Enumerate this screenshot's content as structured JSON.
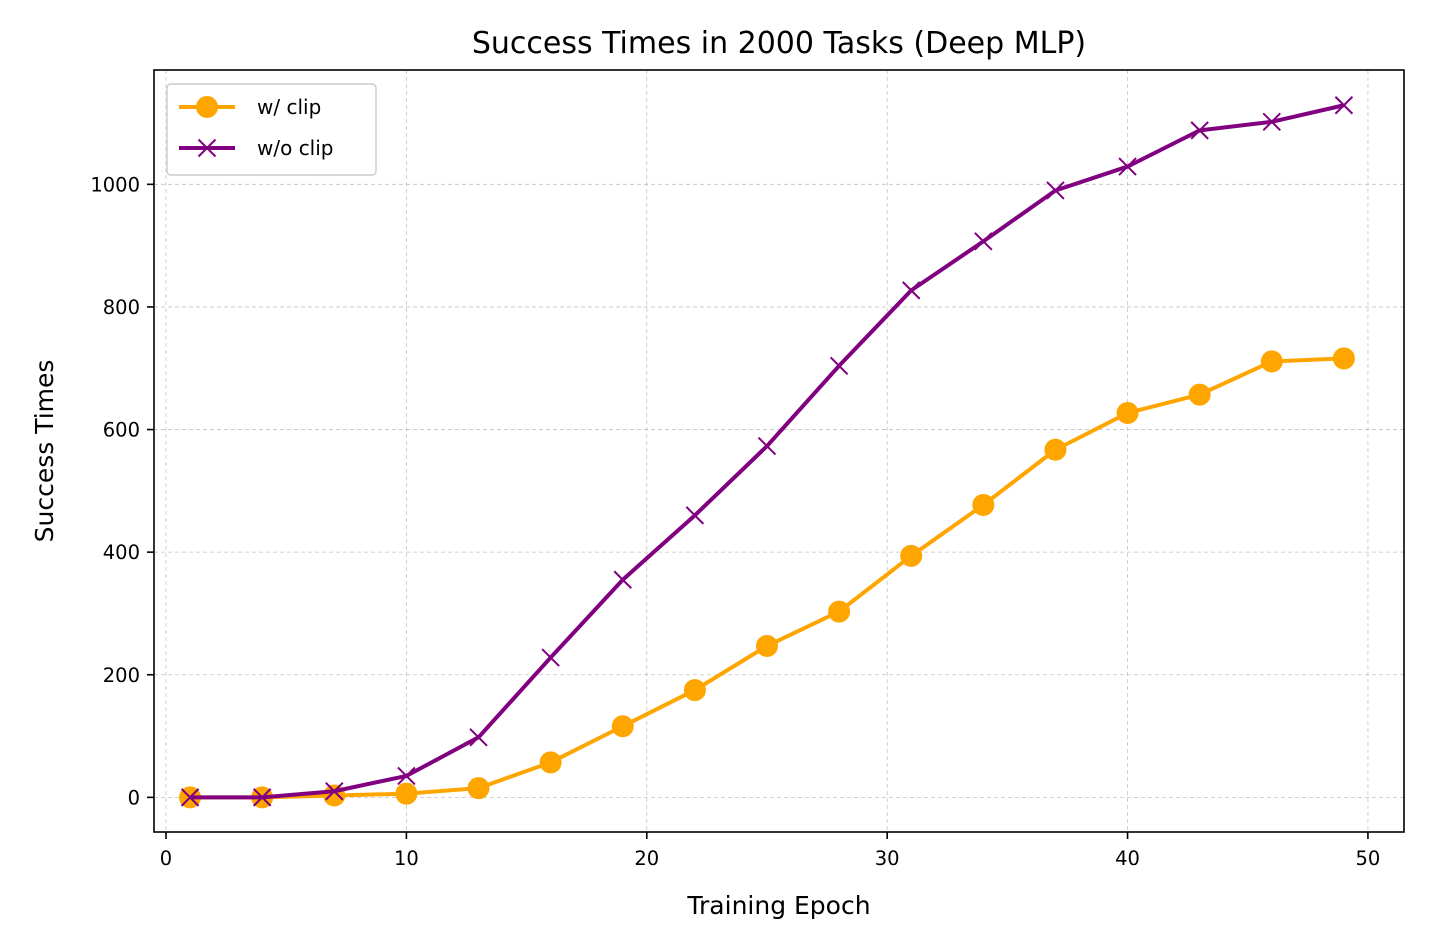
{
  "chart_data": {
    "type": "line",
    "title": "Success Times in 2000 Tasks (Deep MLP)",
    "xlabel": "Training Epoch",
    "ylabel": "Success Times",
    "xlim": [
      -0.5,
      51.5
    ],
    "ylim": [
      -56.5,
      1186.5
    ],
    "xticks": [
      0,
      10,
      20,
      30,
      40,
      50
    ],
    "yticks": [
      0,
      200,
      400,
      600,
      800,
      1000
    ],
    "grid": true,
    "legend_position": "top-left",
    "x": [
      1,
      4,
      7,
      10,
      13,
      16,
      19,
      22,
      25,
      28,
      31,
      34,
      37,
      40,
      43,
      46,
      49
    ],
    "series": [
      {
        "name": "w/ clip",
        "color": "#FFA500",
        "marker": "circle",
        "values": [
          0,
          0,
          3,
          6,
          15,
          57,
          116,
          175,
          247,
          303,
          394,
          477,
          567,
          627,
          657,
          711,
          716
        ]
      },
      {
        "name": "w/o clip",
        "color": "#800080",
        "marker": "x",
        "values": [
          0,
          0,
          10,
          35,
          98,
          228,
          355,
          460,
          573,
          704,
          827,
          907,
          990,
          1029,
          1088,
          1102,
          1129
        ]
      }
    ]
  }
}
